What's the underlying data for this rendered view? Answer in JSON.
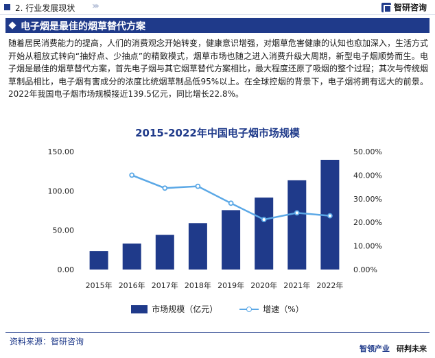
{
  "header": {
    "section_label": "2. 行业发展现状",
    "logo_text": "智研咨询"
  },
  "title_band": {
    "title": "电子烟是最佳的烟草替代方案"
  },
  "body_text": "随着居民消费能力的提高，人们的消费观念开始转变，健康意识增强，对烟草危害健康的认知也愈加深入，生活方式开始从粗放式转向“抽好点、少抽点”的精致模式，烟草市场也随之进入消费升级大周期，新型电子烟顺势而生。电子烟是最佳的烟草替代方案，首先电子烟与其它烟草替代方案相比，最大程度还原了吸烟的整个过程；其次与传统烟草制品相比，电子烟有害成分的浓度比统烟草制品低95%以上。在全球控烟的背景下，电子烟将拥有远大的前景。2022年我国电子烟市场规模接近139.5亿元，同比增长22.8%。",
  "chart_data": {
    "type": "bar",
    "title": "2015-2022年中国电子烟市场规模",
    "categories": [
      "2015年",
      "2016年",
      "2017年",
      "2018年",
      "2019年",
      "2020年",
      "2021年",
      "2022年"
    ],
    "series": [
      {
        "name": "市场规模（亿元）",
        "type": "bar",
        "axis": "left",
        "color": "#1f3a8a",
        "values": [
          23.5,
          33,
          44,
          59,
          75.5,
          91.5,
          113.5,
          139.5
        ]
      },
      {
        "name": "增速（%）",
        "type": "line",
        "axis": "right",
        "color": "#5ba8e6",
        "values": [
          null,
          40.0,
          34.5,
          35.3,
          28.1,
          21.2,
          24.0,
          22.8
        ]
      }
    ],
    "y_left": {
      "ylim": [
        0,
        150
      ],
      "ticks": [
        "0.00",
        "50.00",
        "100.00",
        "150.00"
      ]
    },
    "y_right": {
      "ylim": [
        0,
        50
      ],
      "ticks": [
        "0.00%",
        "10.00%",
        "20.00%",
        "30.00%",
        "40.00%",
        "50.00%"
      ]
    },
    "grid": false,
    "legend_position": "bottom"
  },
  "footer": {
    "source_label": "资料来源：智研咨询",
    "brand_a": "智领产业",
    "brand_b": "研判未来"
  }
}
